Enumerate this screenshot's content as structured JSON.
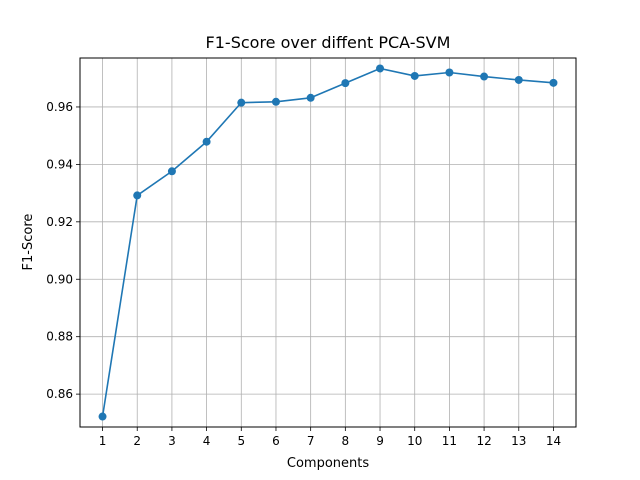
{
  "chart_data": {
    "type": "line",
    "title": "F1-Score over diffent PCA-SVM",
    "xlabel": "Components",
    "ylabel": "F1-Score",
    "x": [
      1,
      2,
      3,
      4,
      5,
      6,
      7,
      8,
      9,
      10,
      11,
      12,
      13,
      14
    ],
    "series": [
      {
        "values": [
          0.8522,
          0.9292,
          0.9376,
          0.9479,
          0.9615,
          0.9618,
          0.9632,
          0.9683,
          0.9734,
          0.9708,
          0.972,
          0.9706,
          0.9694,
          0.9684
        ],
        "color": "#1f77b4",
        "marker": "circle"
      }
    ],
    "xticks": [
      "1",
      "2",
      "3",
      "4",
      "5",
      "6",
      "7",
      "8",
      "9",
      "10",
      "11",
      "12",
      "13",
      "14"
    ],
    "yticks": [
      "0.86",
      "0.88",
      "0.90",
      "0.92",
      "0.94",
      "0.96"
    ],
    "xlim": [
      0.35,
      14.65
    ],
    "ylim": [
      0.84855,
      0.97705
    ],
    "grid": true
  }
}
